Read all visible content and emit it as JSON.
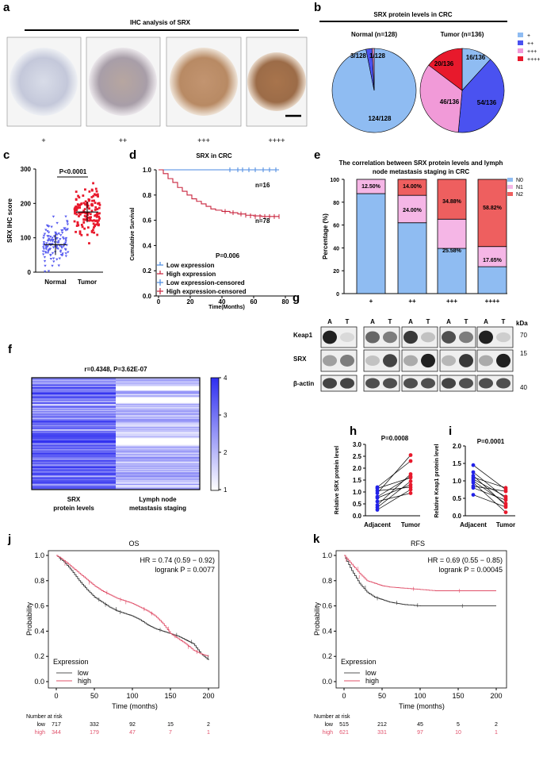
{
  "colors": {
    "blue": "#4a52f0",
    "red": "#e8192c",
    "pink_red": "#ee5f5f",
    "light_blue": "#8fbcf2",
    "pink": "#f19ad8",
    "km_low": "#555555",
    "km_high": "#e0506a"
  },
  "panel_labels": {
    "a": "a",
    "b": "b",
    "c": "c",
    "d": "d",
    "e": "e",
    "f": "f",
    "g": "g",
    "h": "h",
    "i": "i",
    "j": "j",
    "k": "k"
  },
  "panel_a": {
    "title": "IHC analysis of SRX",
    "grades": [
      "+",
      "++",
      "+++",
      "++++"
    ]
  },
  "panel_b": {
    "title": "SRX protein levels in CRC",
    "normal_title": "Normal (n=128)",
    "tumor_title": "Tumor (n=136)",
    "legend": [
      "+",
      "++",
      "+++",
      "++++"
    ],
    "chart_data": {
      "type": "pie",
      "title": "SRX protein levels in CRC",
      "series": [
        {
          "name": "Normal (n=128)",
          "categories": [
            "+",
            "++",
            "+++",
            "++++"
          ],
          "values": [
            124,
            3,
            1,
            0
          ],
          "labels": [
            "124/128",
            "3/128",
            "1/128",
            ""
          ]
        },
        {
          "name": "Tumor (n=136)",
          "categories": [
            "+",
            "++",
            "+++",
            "++++"
          ],
          "values": [
            16,
            54,
            46,
            20
          ],
          "labels": [
            "16/136",
            "54/136",
            "46/136",
            "20/136"
          ]
        }
      ]
    }
  },
  "panel_c": {
    "ylabel": "SRX IHC score",
    "pvalue": "P<0.0001",
    "yticks": [
      "0",
      "100",
      "200",
      "300"
    ],
    "xticks": [
      "Normal",
      "Tumor"
    ],
    "chart_data": {
      "type": "scatter",
      "ylabel": "SRX IHC score",
      "ylim": [
        0,
        300
      ],
      "categories": [
        "Normal",
        "Tumor"
      ],
      "mean": [
        80,
        175
      ],
      "sd": [
        30,
        30
      ],
      "n": [
        128,
        136
      ]
    }
  },
  "panel_d": {
    "title": "SRX in CRC",
    "xlabel": "Time(Months)",
    "ylabel": "Cumulative Survival",
    "pvalue": "P=0.006",
    "n_low": "n=16",
    "n_high": "n=78",
    "xticks": [
      "0",
      "20",
      "40",
      "60",
      "80"
    ],
    "yticks": [
      "0.0",
      "0.2",
      "0.4",
      "0.6",
      "0.8",
      "1.0"
    ],
    "legend": [
      "Low expression",
      "High expression",
      "Low expression-censored",
      "High expression-censored"
    ],
    "chart_data": {
      "type": "line",
      "xlim": [
        0,
        80
      ],
      "ylim": [
        0,
        1
      ],
      "series": [
        {
          "name": "Low expression",
          "x": [
            0,
            76
          ],
          "y": [
            1.0,
            1.0
          ]
        },
        {
          "name": "High expression",
          "x": [
            0,
            3,
            6,
            9,
            12,
            15,
            18,
            21,
            24,
            27,
            30,
            33,
            36,
            40,
            45,
            50,
            55,
            60,
            65,
            76
          ],
          "y": [
            1.0,
            0.97,
            0.93,
            0.9,
            0.86,
            0.83,
            0.8,
            0.77,
            0.75,
            0.73,
            0.71,
            0.69,
            0.68,
            0.67,
            0.66,
            0.65,
            0.64,
            0.635,
            0.63,
            0.63
          ]
        }
      ]
    }
  },
  "panel_e": {
    "title_line1": "The correlation between SRX protein levels and lymph",
    "title_line2": "node metastasis staging in CRC",
    "ylabel": "Percentage (%)",
    "yticks": [
      "0",
      "20",
      "40",
      "60",
      "80",
      "100"
    ],
    "legend": [
      "N0",
      "N1",
      "N2"
    ],
    "bar_labels": [
      [
        "12.50%",
        "14.00%",
        "34.88%",
        "58.82%"
      ],
      [
        "",
        "24.00%",
        "25.58%",
        "17.65%"
      ]
    ],
    "chart_data": {
      "type": "bar",
      "stacked": true,
      "categories": [
        "+",
        "++",
        "+++",
        "++++"
      ],
      "ylim": [
        0,
        100
      ],
      "series": [
        {
          "name": "N0",
          "values": [
            87.5,
            62.0,
            39.54,
            23.53
          ]
        },
        {
          "name": "N1",
          "values": [
            12.5,
            24.0,
            25.58,
            17.65
          ]
        },
        {
          "name": "N2",
          "values": [
            0.0,
            14.0,
            34.88,
            58.82
          ]
        }
      ]
    }
  },
  "panel_f": {
    "title": "r=0.4348, P=3.62E-07",
    "col1_line1": "SRX",
    "col1_line2": "protein levels",
    "col2_line1": "Lymph node",
    "col2_line2": "metastasis staging",
    "scale": [
      "4",
      "3",
      "2",
      "1"
    ]
  },
  "panel_g": {
    "lanes": [
      "A",
      "T"
    ],
    "rows": [
      "Keap1",
      "SRX",
      "β-actin"
    ],
    "kda": "kDa",
    "kda_marks": [
      "70",
      "15",
      "40"
    ]
  },
  "panel_h": {
    "pvalue": "P=0.0008",
    "ylabel": "Relative SRX protein level",
    "yticks": [
      "0.0",
      "0.5",
      "1.0",
      "1.5",
      "2.0",
      "2.5",
      "3.0"
    ],
    "xticks": [
      "Adjacent",
      "Tumor"
    ],
    "chart_data": {
      "type": "scatter",
      "paired": true,
      "ylim": [
        0,
        3
      ],
      "categories": [
        "Adjacent",
        "Tumor"
      ],
      "adjacent": [
        0.25,
        0.35,
        0.45,
        0.6,
        0.75,
        0.8,
        0.95,
        1.05,
        1.15,
        1.2
      ],
      "tumor": [
        0.95,
        1.1,
        1.2,
        1.3,
        1.45,
        1.6,
        1.65,
        1.75,
        2.3,
        2.55
      ]
    }
  },
  "panel_i": {
    "pvalue": "P=0.0001",
    "ylabel": "Relative Keap1 protein level",
    "yticks": [
      "0.0",
      "0.5",
      "1.0",
      "1.5",
      "2.0"
    ],
    "xticks": [
      "Adjacent",
      "Tumor"
    ],
    "chart_data": {
      "type": "scatter",
      "paired": true,
      "ylim": [
        0,
        2
      ],
      "categories": [
        "Adjacent",
        "Tumor"
      ],
      "adjacent": [
        0.6,
        0.8,
        0.85,
        0.95,
        1.0,
        1.05,
        1.1,
        1.15,
        1.25,
        1.45
      ],
      "tumor": [
        0.1,
        0.25,
        0.3,
        0.35,
        0.45,
        0.5,
        0.55,
        0.7,
        0.75,
        0.8
      ]
    }
  },
  "panel_j": {
    "title": "OS",
    "hr": "HR = 0.74 (0.59 − 0.92)",
    "logrank": "logrank P = 0.0077",
    "ylabel": "Probability",
    "xlabel": "Time (months)",
    "xticks": [
      "0",
      "50",
      "100",
      "150",
      "200"
    ],
    "yticks": [
      "0.0",
      "0.2",
      "0.4",
      "0.6",
      "0.8",
      "1.0"
    ],
    "legend_title": "Expression",
    "legend": [
      "low",
      "high"
    ],
    "risk_title": "Number at risk",
    "risk_low_label": "low",
    "risk_high_label": "high",
    "risk_low": [
      "717",
      "332",
      "92",
      "15",
      "2"
    ],
    "risk_high": [
      "344",
      "179",
      "47",
      "7",
      "1"
    ],
    "chart_data": {
      "type": "line",
      "xlim": [
        0,
        200
      ],
      "ylim": [
        0,
        1
      ],
      "series": [
        {
          "name": "low",
          "x": [
            0,
            10,
            20,
            30,
            40,
            50,
            60,
            70,
            80,
            90,
            100,
            110,
            120,
            130,
            140,
            150,
            160,
            170,
            180,
            190,
            200
          ],
          "y": [
            1.0,
            0.95,
            0.88,
            0.8,
            0.73,
            0.67,
            0.63,
            0.59,
            0.56,
            0.54,
            0.52,
            0.49,
            0.45,
            0.42,
            0.4,
            0.38,
            0.36,
            0.33,
            0.3,
            0.22,
            0.17
          ]
        },
        {
          "name": "high",
          "x": [
            0,
            10,
            20,
            30,
            40,
            50,
            60,
            70,
            80,
            90,
            100,
            110,
            120,
            130,
            140,
            150,
            160,
            170,
            180,
            190,
            200
          ],
          "y": [
            1.0,
            0.96,
            0.91,
            0.86,
            0.81,
            0.76,
            0.72,
            0.69,
            0.66,
            0.64,
            0.62,
            0.59,
            0.56,
            0.52,
            0.46,
            0.38,
            0.34,
            0.3,
            0.25,
            0.22,
            0.2
          ]
        }
      ]
    }
  },
  "panel_k": {
    "title": "RFS",
    "hr": "HR = 0.69 (0.55 − 0.85)",
    "logrank": "logrank P = 0.00045",
    "ylabel": "Probability",
    "xlabel": "Time (months)",
    "xticks": [
      "0",
      "50",
      "100",
      "150",
      "200"
    ],
    "yticks": [
      "0.0",
      "0.2",
      "0.4",
      "0.6",
      "0.8",
      "1.0"
    ],
    "legend_title": "Expression",
    "legend": [
      "low",
      "high"
    ],
    "risk_title": "Number at risk",
    "risk_low_label": "low",
    "risk_high_label": "high",
    "risk_low": [
      "515",
      "212",
      "45",
      "5",
      "2"
    ],
    "risk_high": [
      "621",
      "331",
      "97",
      "10",
      "1"
    ],
    "chart_data": {
      "type": "line",
      "xlim": [
        0,
        200
      ],
      "ylim": [
        0,
        1
      ],
      "series": [
        {
          "name": "low",
          "x": [
            0,
            10,
            20,
            30,
            40,
            50,
            60,
            70,
            80,
            100,
            120,
            150,
            200
          ],
          "y": [
            1.0,
            0.88,
            0.78,
            0.71,
            0.67,
            0.65,
            0.63,
            0.62,
            0.61,
            0.6,
            0.6,
            0.6,
            0.6
          ]
        },
        {
          "name": "high",
          "x": [
            0,
            10,
            20,
            30,
            40,
            50,
            60,
            70,
            80,
            100,
            120,
            150,
            200
          ],
          "y": [
            1.0,
            0.93,
            0.86,
            0.8,
            0.78,
            0.76,
            0.75,
            0.745,
            0.74,
            0.73,
            0.72,
            0.72,
            0.72
          ]
        }
      ]
    }
  }
}
